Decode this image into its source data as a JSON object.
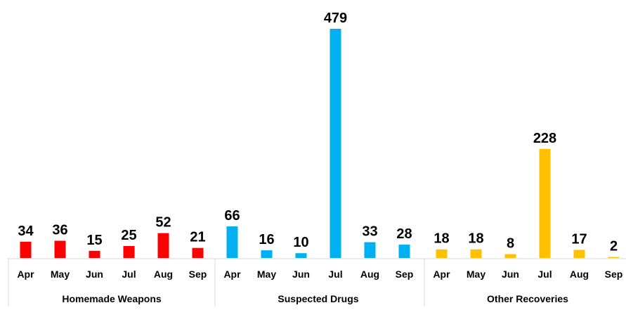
{
  "chart_data": {
    "type": "bar",
    "title": "",
    "xlabel": "",
    "ylabel": "",
    "ylim": [
      0,
      479
    ],
    "grid": false,
    "legend": "none",
    "groups": [
      {
        "name": "Homemade Weapons",
        "color": "#ff0000",
        "categories": [
          "Apr",
          "May",
          "Jun",
          "Jul",
          "Aug",
          "Sep"
        ],
        "values": [
          34,
          36,
          15,
          25,
          52,
          21
        ]
      },
      {
        "name": "Suspected Drugs",
        "color": "#00b0f0",
        "categories": [
          "Apr",
          "May",
          "Jun",
          "Jul",
          "Aug",
          "Sep"
        ],
        "values": [
          66,
          16,
          10,
          479,
          33,
          28
        ]
      },
      {
        "name": "Other Recoveries",
        "color": "#ffc000",
        "categories": [
          "Apr",
          "May",
          "Jun",
          "Jul",
          "Aug",
          "Sep"
        ],
        "values": [
          18,
          18,
          8,
          228,
          17,
          2
        ]
      }
    ]
  }
}
